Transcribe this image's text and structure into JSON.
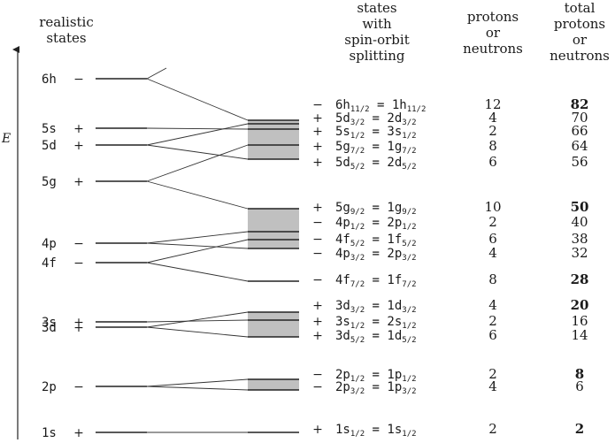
{
  "headers": {
    "realistic": [
      "realistic",
      "states"
    ],
    "so": [
      "states",
      "with",
      "spin-orbit",
      "splitting"
    ],
    "pn": [
      "protons",
      "or",
      "neutrons"
    ],
    "total": [
      "total",
      "protons",
      "or",
      "neutrons"
    ]
  },
  "axis_label": "E",
  "shell_gap_color": "#c0c0c0",
  "left_levels": [
    {
      "name": "6h",
      "parity": "−"
    },
    {
      "name": "5s",
      "parity": "+"
    },
    {
      "name": "5d",
      "parity": "+"
    },
    {
      "name": "5g",
      "parity": "+"
    },
    {
      "name": "4p",
      "parity": "−"
    },
    {
      "name": "4f",
      "parity": "−"
    },
    {
      "name": "3s",
      "parity": "+"
    },
    {
      "name": "3d",
      "parity": "+"
    },
    {
      "name": "2p",
      "parity": "−"
    },
    {
      "name": "1s",
      "parity": "+"
    }
  ],
  "right_levels": [
    {
      "parity": "−",
      "a": "6h",
      "as": "11/2",
      "b": "1h",
      "bs": "11/2",
      "count": "12",
      "total": "82",
      "magic": true
    },
    {
      "parity": "+",
      "a": "5d",
      "as": "3/2",
      "b": "2d",
      "bs": "3/2",
      "count": "4",
      "total": "70",
      "magic": false
    },
    {
      "parity": "+",
      "a": "5s",
      "as": "1/2",
      "b": "3s",
      "bs": "1/2",
      "count": "2",
      "total": "66",
      "magic": false
    },
    {
      "parity": "+",
      "a": "5g",
      "as": "7/2",
      "b": "1g",
      "bs": "7/2",
      "count": "8",
      "total": "64",
      "magic": false
    },
    {
      "parity": "+",
      "a": "5d",
      "as": "5/2",
      "b": "2d",
      "bs": "5/2",
      "count": "6",
      "total": "56",
      "magic": false
    },
    {
      "parity": "+",
      "a": "5g",
      "as": "9/2",
      "b": "1g",
      "bs": "9/2",
      "count": "10",
      "total": "50",
      "magic": true
    },
    {
      "parity": "−",
      "a": "4p",
      "as": "1/2",
      "b": "2p",
      "bs": "1/2",
      "count": "2",
      "total": "40",
      "magic": false
    },
    {
      "parity": "−",
      "a": "4f",
      "as": "5/2",
      "b": "1f",
      "bs": "5/2",
      "count": "6",
      "total": "38",
      "magic": false
    },
    {
      "parity": "−",
      "a": "4p",
      "as": "3/2",
      "b": "2p",
      "bs": "3/2",
      "count": "4",
      "total": "32",
      "magic": false
    },
    {
      "parity": "−",
      "a": "4f",
      "as": "7/2",
      "b": "1f",
      "bs": "7/2",
      "count": "8",
      "total": "28",
      "magic": true
    },
    {
      "parity": "+",
      "a": "3d",
      "as": "3/2",
      "b": "1d",
      "bs": "3/2",
      "count": "4",
      "total": "20",
      "magic": true
    },
    {
      "parity": "+",
      "a": "3s",
      "as": "1/2",
      "b": "2s",
      "bs": "1/2",
      "count": "2",
      "total": "16",
      "magic": false
    },
    {
      "parity": "+",
      "a": "3d",
      "as": "5/2",
      "b": "1d",
      "bs": "5/2",
      "count": "6",
      "total": "14",
      "magic": false
    },
    {
      "parity": "−",
      "a": "2p",
      "as": "1/2",
      "b": "1p",
      "bs": "1/2",
      "count": "2",
      "total": "8",
      "magic": true
    },
    {
      "parity": "−",
      "a": "2p",
      "as": "3/2",
      "b": "1p",
      "bs": "3/2",
      "count": "4",
      "total": "6",
      "magic": false
    },
    {
      "parity": "+",
      "a": "1s",
      "as": "1/2",
      "b": "1s",
      "bs": "1/2",
      "count": "2",
      "total": "2",
      "magic": true
    }
  ],
  "connections": [
    [
      0,
      0
    ],
    [
      1,
      2
    ],
    [
      2,
      1
    ],
    [
      2,
      4
    ],
    [
      3,
      3
    ],
    [
      3,
      5
    ],
    [
      4,
      6
    ],
    [
      4,
      8
    ],
    [
      5,
      7
    ],
    [
      5,
      9
    ],
    [
      6,
      11
    ],
    [
      7,
      10
    ],
    [
      7,
      12
    ],
    [
      8,
      13
    ],
    [
      8,
      14
    ],
    [
      9,
      15
    ]
  ]
}
